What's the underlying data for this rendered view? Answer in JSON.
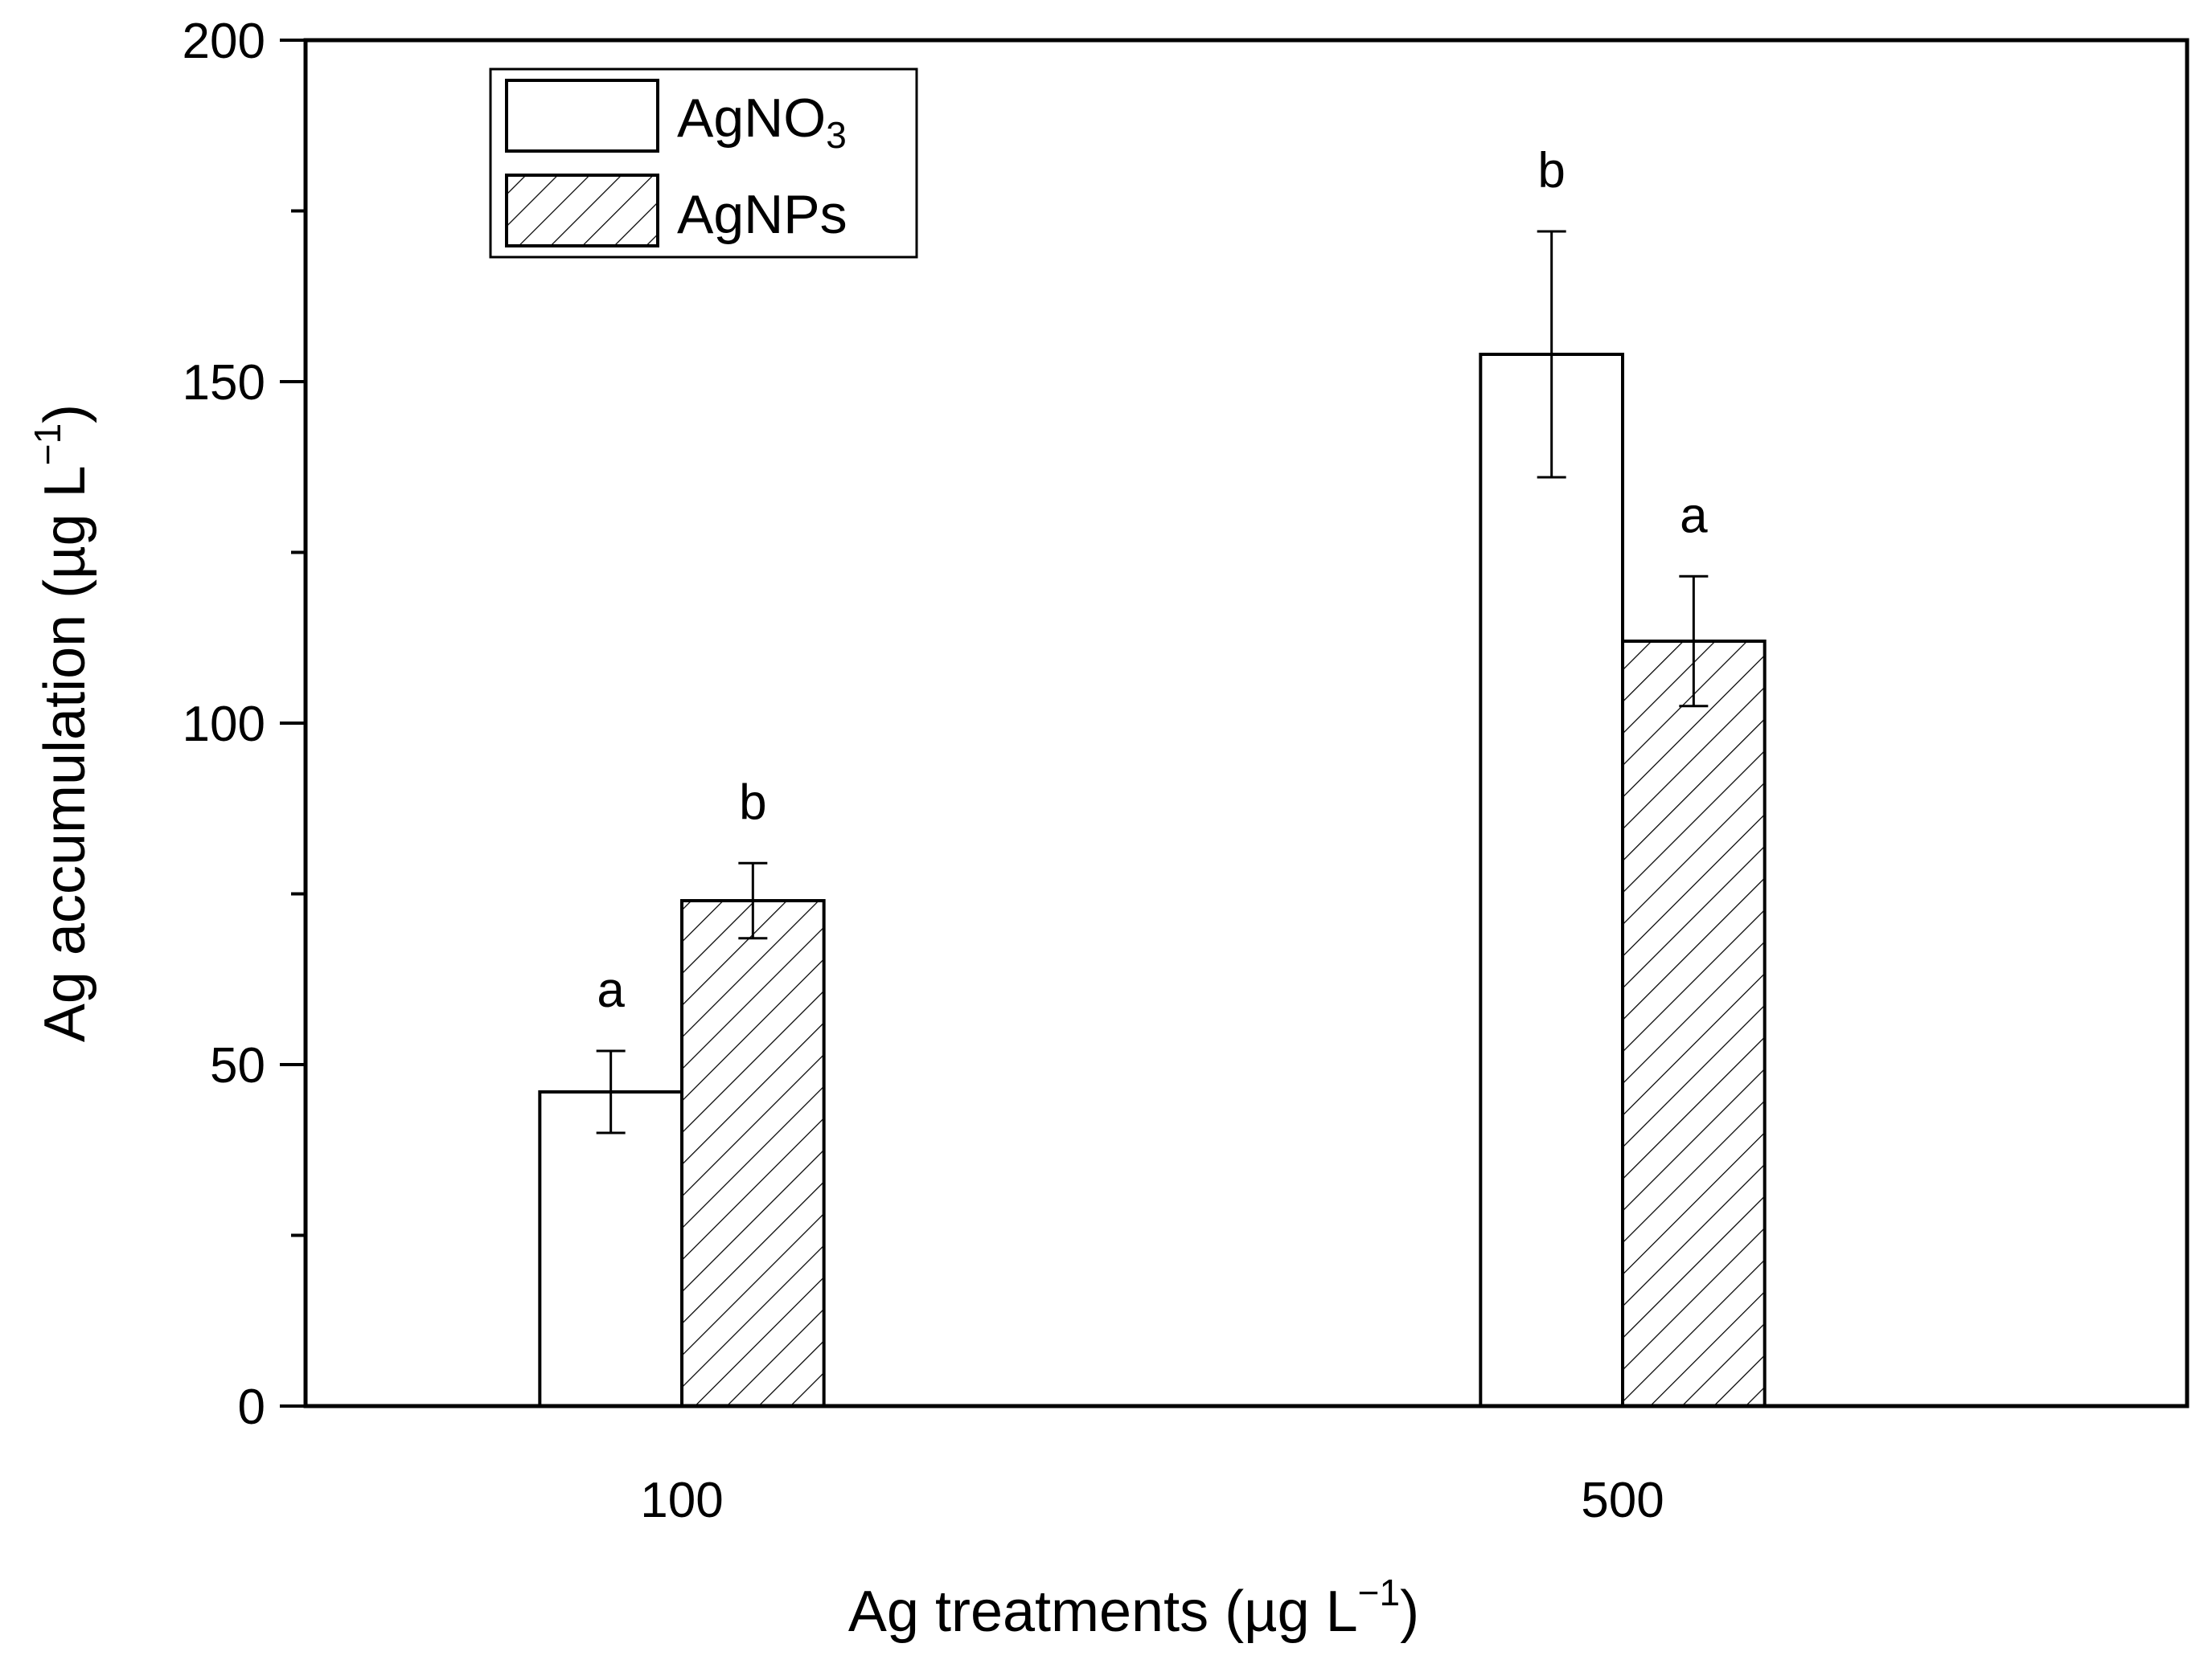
{
  "chart_data": {
    "type": "bar",
    "title": "",
    "xlabel": {
      "text": "Ag treatments (µg L",
      "sup": "−1",
      "close": ")"
    },
    "ylabel": {
      "text": "Ag accumulation (µg L",
      "sup": "−1",
      "close": ")"
    },
    "categories": [
      "100",
      "500"
    ],
    "ylim": [
      0,
      200
    ],
    "yticks": [
      "0",
      "50",
      "100",
      "150",
      "200"
    ],
    "minor_yticks": [
      25,
      75,
      125,
      175
    ],
    "grid": false,
    "legend_position": "top-left",
    "series": [
      {
        "name": "AgNO",
        "name_sub": "3",
        "pattern": "none",
        "values": [
          46,
          154
        ],
        "errors": [
          6,
          18
        ],
        "letters": [
          "a",
          "b"
        ]
      },
      {
        "name": "AgNPs",
        "name_sub": "",
        "pattern": "hatched",
        "values": [
          74,
          112
        ],
        "errors": [
          5.5,
          9.5
        ],
        "letters": [
          "b",
          "a"
        ]
      }
    ],
    "colors": {
      "axis": "#000000",
      "bar_fill": "#ffffff",
      "hatch": "#000000"
    }
  }
}
